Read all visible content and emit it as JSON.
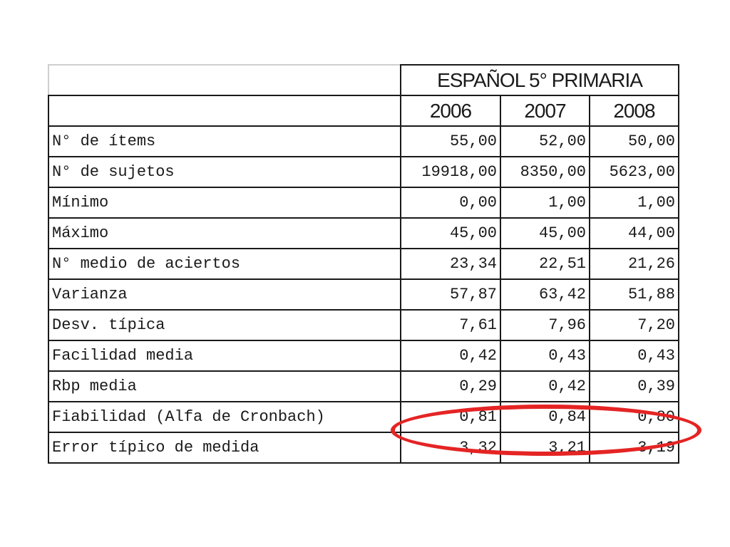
{
  "table": {
    "title": "ESPAÑOL 5° PRIMARIA",
    "years": [
      "2006",
      "2007",
      "2008"
    ],
    "rows": [
      {
        "label": "N° de ítems",
        "values": [
          "55,00",
          "52,00",
          "50,00"
        ]
      },
      {
        "label": "N° de sujetos",
        "values": [
          "19918,00",
          "8350,00",
          "5623,00"
        ]
      },
      {
        "label": "Mínimo",
        "values": [
          "0,00",
          "1,00",
          "1,00"
        ]
      },
      {
        "label": "Máximo",
        "values": [
          "45,00",
          "45,00",
          "44,00"
        ]
      },
      {
        "label": "N° medio de aciertos",
        "values": [
          "23,34",
          "22,51",
          "21,26"
        ]
      },
      {
        "label": "Varianza",
        "values": [
          "57,87",
          "63,42",
          "51,88"
        ]
      },
      {
        "label": "Desv. típica",
        "values": [
          "7,61",
          "7,96",
          "7,20"
        ]
      },
      {
        "label": "Facilidad media",
        "values": [
          "0,42",
          "0,43",
          "0,43"
        ]
      },
      {
        "label": "Rbp media",
        "values": [
          "0,29",
          "0,42",
          "0,39"
        ]
      },
      {
        "label": "Fiabilidad (Alfa de Cronbach)",
        "values": [
          "0,81",
          "0,84",
          "0,80"
        ]
      },
      {
        "label": "Error típico de medida",
        "values": [
          "3,32",
          "3,21",
          "3,19"
        ]
      }
    ]
  },
  "annotation": {
    "shape": "ellipse",
    "color": "#e52424",
    "highlighted_row": "Fiabilidad (Alfa de Cronbach)"
  }
}
